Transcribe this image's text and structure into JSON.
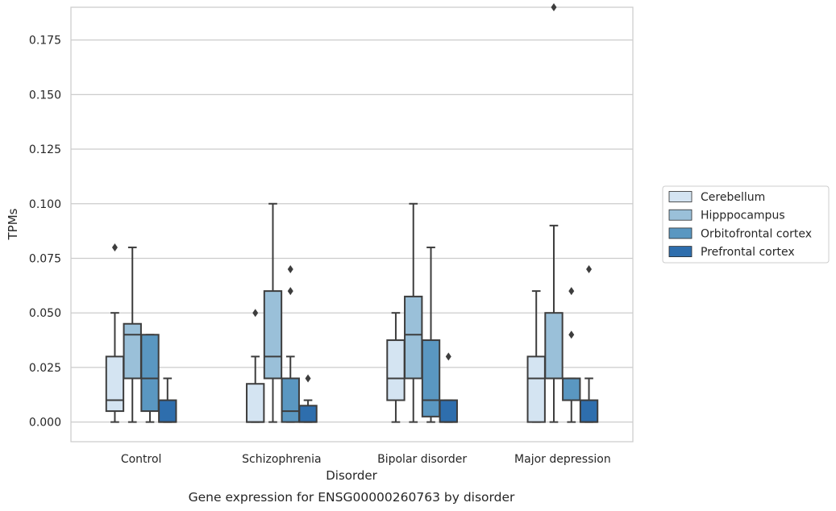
{
  "chart_data": {
    "type": "box",
    "title": "Gene expression for ENSG00000260763 by disorder",
    "xlabel": "Disorder",
    "ylabel": "TPMs",
    "ylim": [
      -0.009,
      0.19
    ],
    "yticks": [
      "0.000",
      "0.025",
      "0.050",
      "0.075",
      "0.100",
      "0.125",
      "0.150",
      "0.175"
    ],
    "ytick_values": [
      0,
      0.025,
      0.05,
      0.075,
      0.1,
      0.125,
      0.15,
      0.175
    ],
    "grid": "horizontal",
    "legend_position": "right",
    "categories": [
      "Control",
      "Schizophrenia",
      "Bipolar disorder",
      "Major depression"
    ],
    "series": [
      {
        "name": "Cerebellum",
        "color": "#d4e4f2",
        "boxes": [
          {
            "whislo": 0.0,
            "q1": 0.005,
            "med": 0.01,
            "q3": 0.03,
            "whishi": 0.05,
            "fliers": [
              0.08
            ]
          },
          {
            "whislo": 0.0,
            "q1": 0.0,
            "med": 0.0,
            "q3": 0.0175,
            "whishi": 0.03,
            "fliers": [
              0.05
            ]
          },
          {
            "whislo": 0.0,
            "q1": 0.01,
            "med": 0.02,
            "q3": 0.0375,
            "whishi": 0.05,
            "fliers": []
          },
          {
            "whislo": 0.0,
            "q1": 0.0,
            "med": 0.02,
            "q3": 0.03,
            "whishi": 0.06,
            "fliers": []
          }
        ]
      },
      {
        "name": "Hipppocampus",
        "color": "#9ac0d9",
        "boxes": [
          {
            "whislo": 0.0,
            "q1": 0.02,
            "med": 0.04,
            "q3": 0.045,
            "whishi": 0.08,
            "fliers": []
          },
          {
            "whislo": 0.0,
            "q1": 0.02,
            "med": 0.03,
            "q3": 0.06,
            "whishi": 0.1,
            "fliers": []
          },
          {
            "whislo": 0.0,
            "q1": 0.02,
            "med": 0.04,
            "q3": 0.0575,
            "whishi": 0.1,
            "fliers": []
          },
          {
            "whislo": 0.0,
            "q1": 0.02,
            "med": 0.02,
            "q3": 0.05,
            "whishi": 0.09,
            "fliers": [
              0.19
            ]
          }
        ]
      },
      {
        "name": "Orbitofrontal cortex",
        "color": "#5a97c1",
        "boxes": [
          {
            "whislo": 0.0,
            "q1": 0.005,
            "med": 0.02,
            "q3": 0.04,
            "whishi": 0.04,
            "fliers": []
          },
          {
            "whislo": 0.0,
            "q1": 0.0,
            "med": 0.005,
            "q3": 0.02,
            "whishi": 0.03,
            "fliers": [
              0.06,
              0.07
            ]
          },
          {
            "whislo": 0.0,
            "q1": 0.0025,
            "med": 0.01,
            "q3": 0.0375,
            "whishi": 0.08,
            "fliers": []
          },
          {
            "whislo": 0.0,
            "q1": 0.01,
            "med": 0.02,
            "q3": 0.02,
            "whishi": 0.02,
            "fliers": [
              0.04,
              0.06
            ]
          }
        ]
      },
      {
        "name": "Prefrontal cortex",
        "color": "#2e6ead",
        "boxes": [
          {
            "whislo": 0.0,
            "q1": 0.0,
            "med": 0.0,
            "q3": 0.01,
            "whishi": 0.02,
            "fliers": []
          },
          {
            "whislo": 0.0,
            "q1": 0.0,
            "med": 0.0,
            "q3": 0.0075,
            "whishi": 0.01,
            "fliers": [
              0.02
            ]
          },
          {
            "whislo": 0.0,
            "q1": 0.0,
            "med": 0.0,
            "q3": 0.01,
            "whishi": 0.01,
            "fliers": [
              0.03
            ]
          },
          {
            "whislo": 0.0,
            "q1": 0.0,
            "med": 0.0,
            "q3": 0.01,
            "whishi": 0.02,
            "fliers": [
              0.07
            ]
          }
        ]
      }
    ]
  }
}
